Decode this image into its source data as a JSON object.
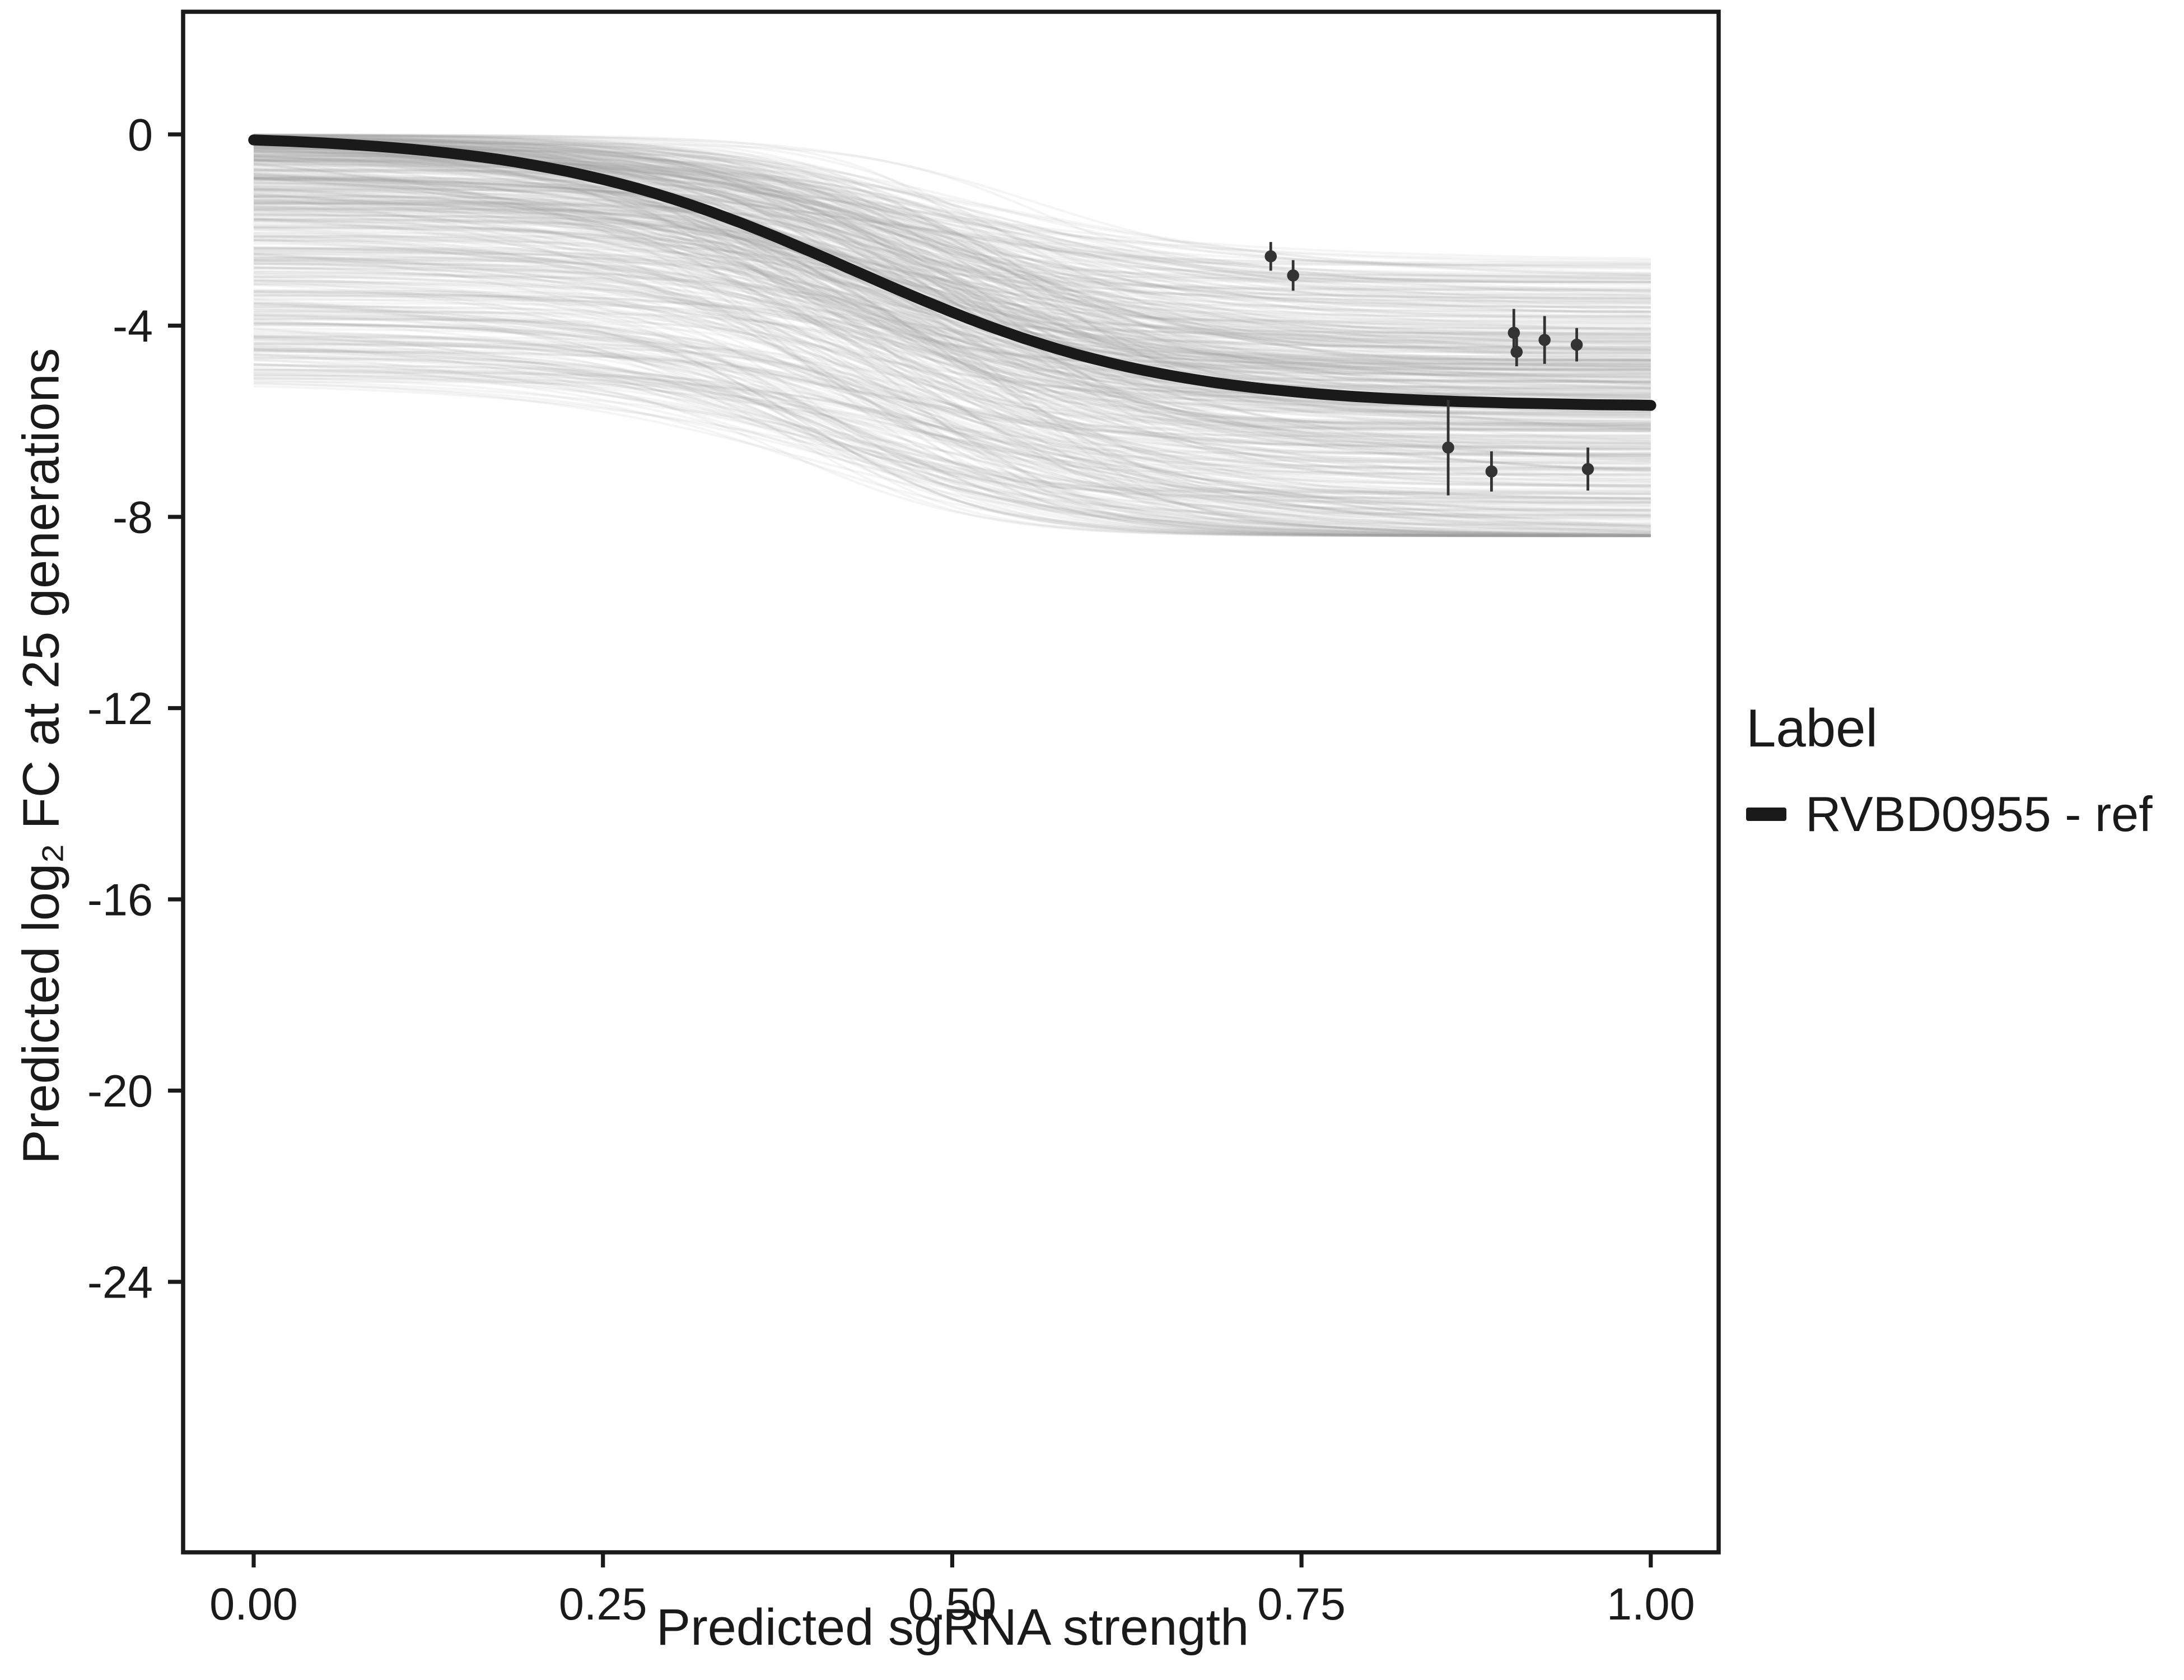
{
  "chart_data": {
    "type": "line",
    "title": "",
    "xlabel": "Predicted sgRNA strength",
    "ylabel": "Predicted  log₂ FC at 25 generations",
    "xlim": [
      0,
      1
    ],
    "ylim": [
      -29.5,
      2.5
    ],
    "grid": "off",
    "xticks": [
      "0.00",
      "0.25",
      "0.50",
      "0.75",
      "1.00"
    ],
    "xtick_values": [
      0,
      0.25,
      0.5,
      0.75,
      1
    ],
    "yticks": [
      "0",
      "-4",
      "-8",
      "-12",
      "-16",
      "-20",
      "-24"
    ],
    "ytick_values": [
      0,
      -4,
      -8,
      -12,
      -16,
      -20,
      -24
    ],
    "legend": {
      "title": "Label",
      "position": "right",
      "items": [
        {
          "label": "RVBD0955 - ref",
          "color": "#1a1a1a",
          "swatch": "thick-line"
        }
      ]
    },
    "series": [
      {
        "name": "RVBD0955 - ref",
        "kind": "sigmoid-fit",
        "color": "#1a1a1a",
        "top": 0,
        "bottom": -5.7,
        "x0": 0.43,
        "k": 9
      }
    ],
    "posterior_ensemble": {
      "description": "bundle of light gray posterior-sample sigmoid curves",
      "count": 500,
      "color": "#999999",
      "opacity": 0.1,
      "seed": 11,
      "top_range": [
        0,
        -5.2
      ],
      "drop_range": [
        2.5,
        6.0
      ],
      "floor": -8.4,
      "x0_range": [
        0.36,
        0.56
      ],
      "k_range": [
        6,
        18
      ]
    },
    "points": [
      {
        "x": 0.728,
        "y": -2.55,
        "err": 0.3
      },
      {
        "x": 0.744,
        "y": -2.95,
        "err": 0.32
      },
      {
        "x": 0.855,
        "y": -6.55,
        "err": 1.0
      },
      {
        "x": 0.886,
        "y": -7.05,
        "err": 0.42
      },
      {
        "x": 0.902,
        "y": -4.15,
        "err": 0.5
      },
      {
        "x": 0.904,
        "y": -4.55,
        "err": 0.3
      },
      {
        "x": 0.924,
        "y": -4.3,
        "err": 0.5
      },
      {
        "x": 0.947,
        "y": -4.4,
        "err": 0.35
      },
      {
        "x": 0.955,
        "y": -7.0,
        "err": 0.45
      }
    ],
    "point_style": {
      "color": "#333333",
      "shape": "circle-with-error-bar"
    }
  }
}
